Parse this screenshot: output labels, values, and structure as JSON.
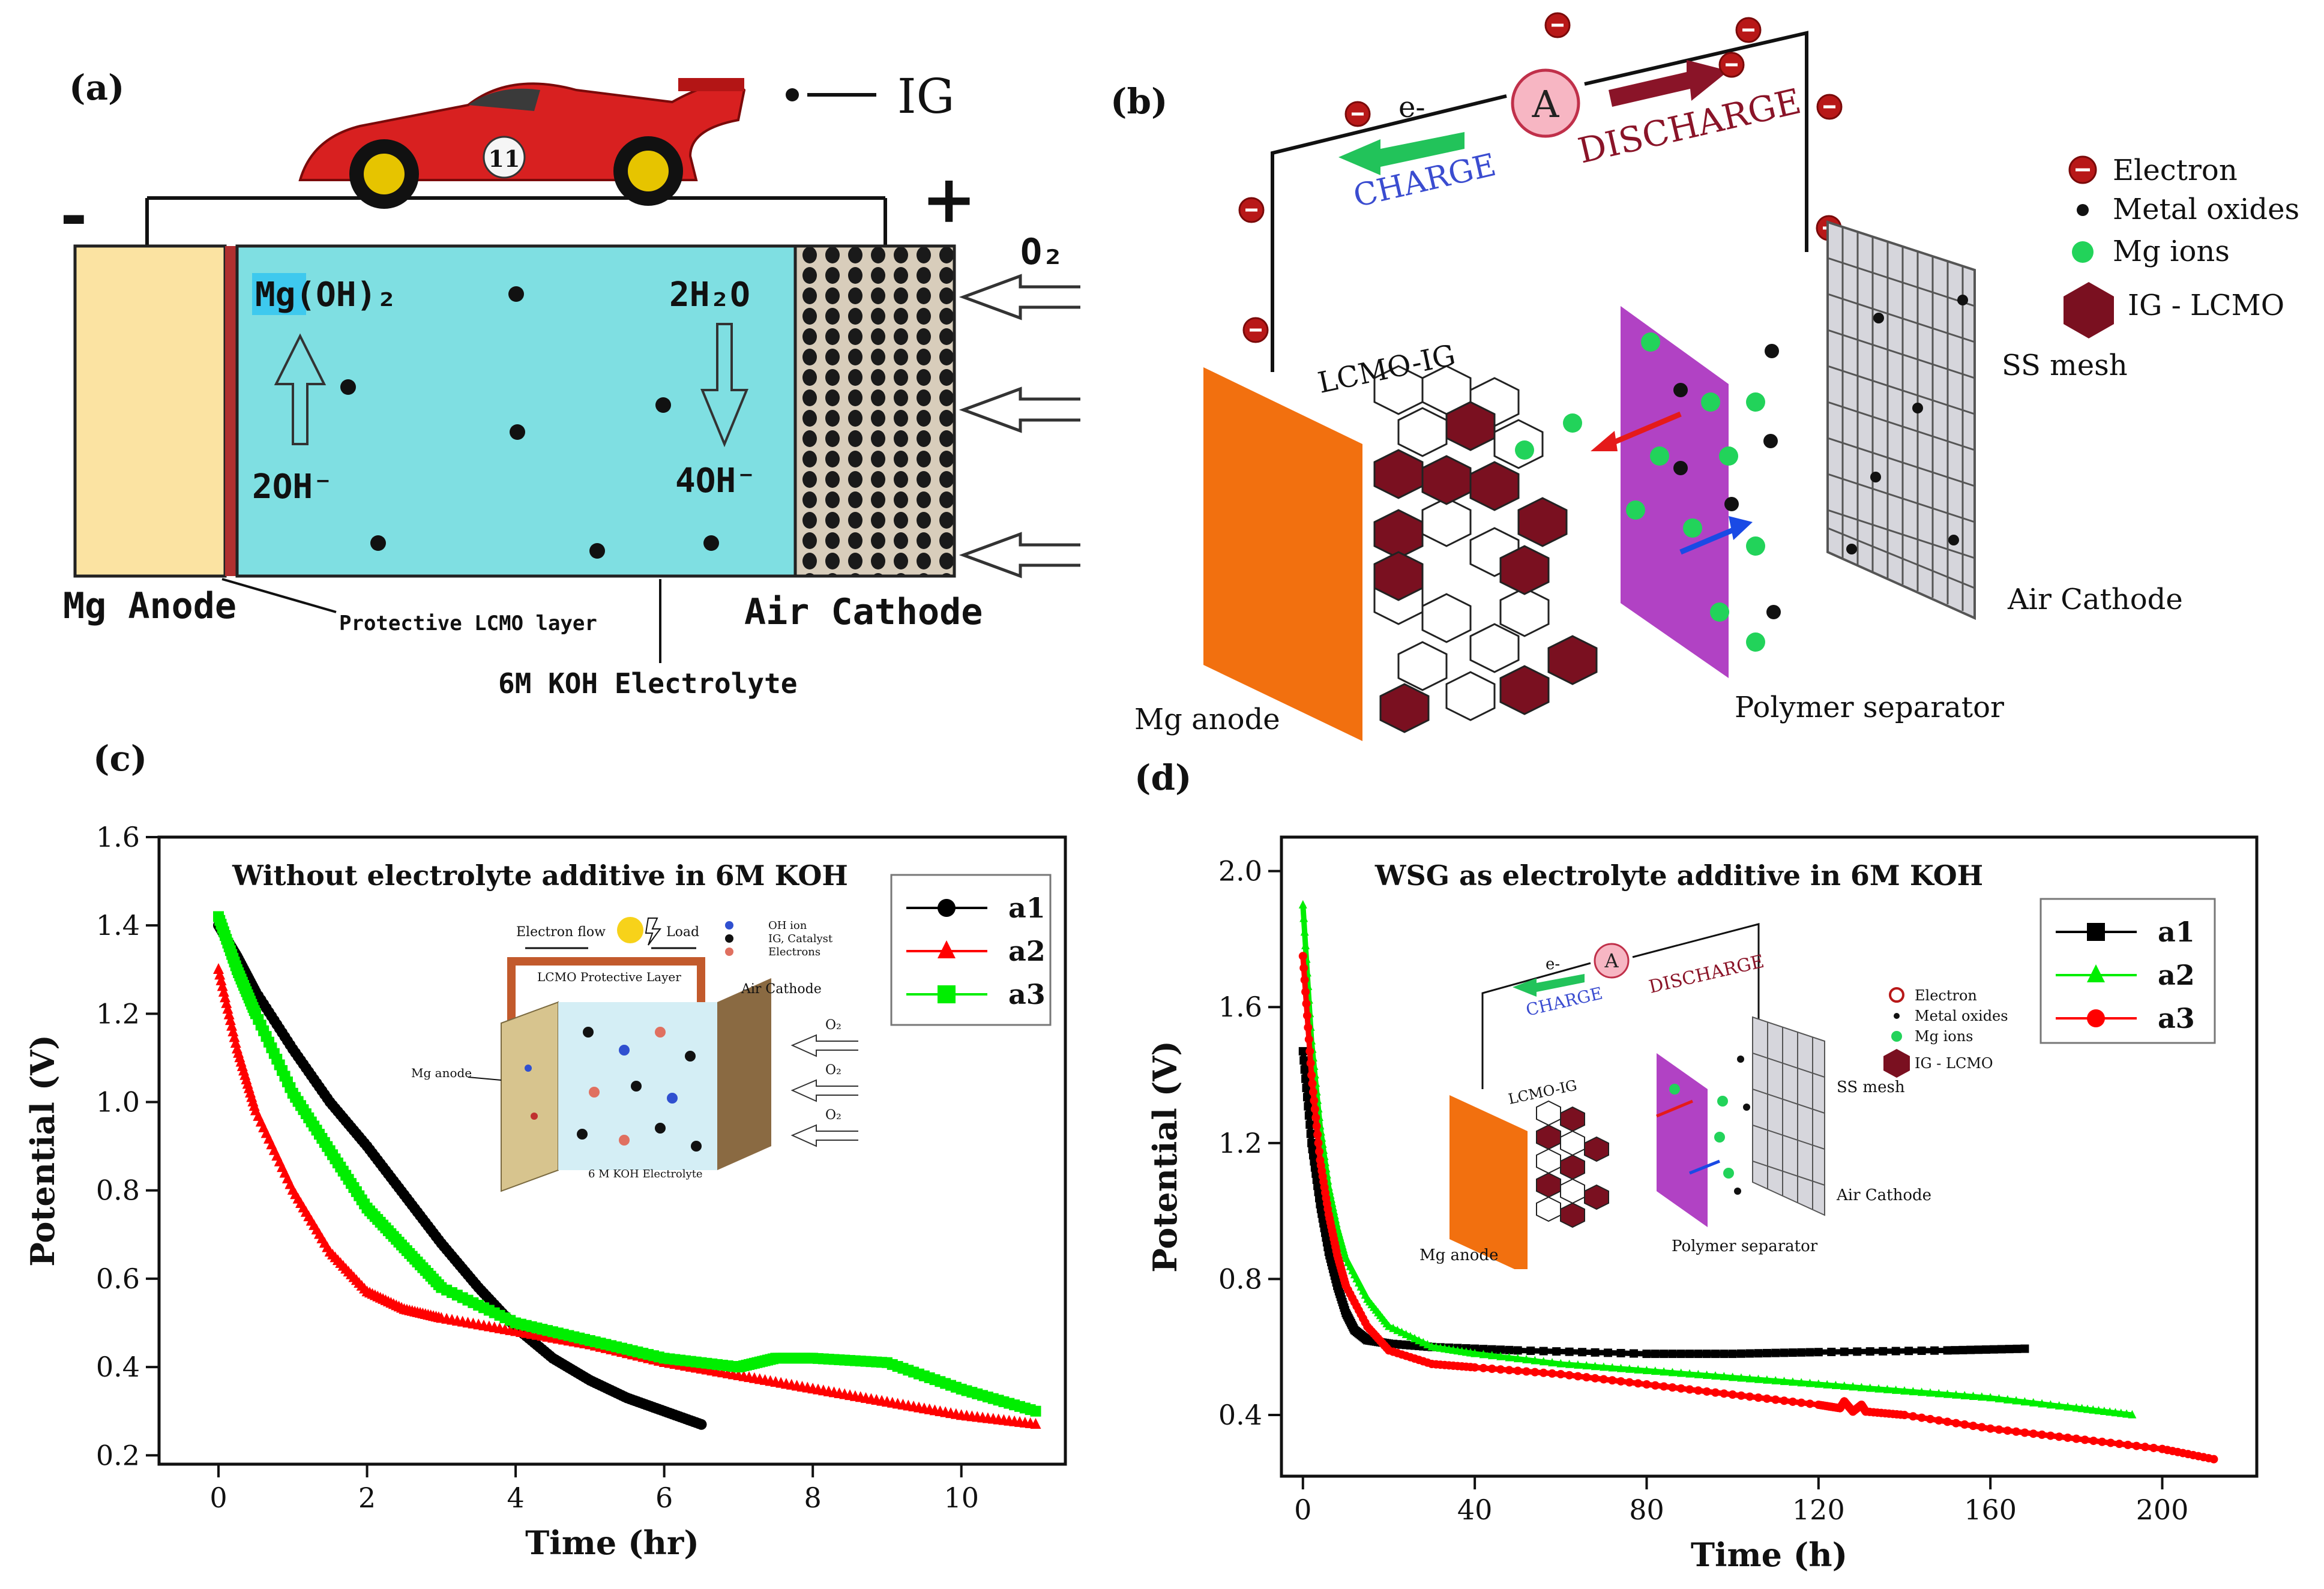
{
  "panel_labels": {
    "a": "(a)",
    "b": "(b)",
    "c": "(c)",
    "d": "(d)"
  },
  "panel_a": {
    "legend_ig": "IG",
    "minus": "-",
    "plus": "+",
    "o2": "O₂",
    "mg_oh2": "Mg(OH)₂",
    "h2o": "2H₂O",
    "oh_left": "2OH⁻",
    "oh_right": "4OH⁻",
    "anode": "Mg Anode",
    "cathode": "Air Cathode",
    "protective": "Protective LCMO layer",
    "electrolyte": "6M KOH Electrolyte",
    "car_number": "11"
  },
  "panel_b": {
    "e_minus": "e-",
    "ammeter": "A",
    "charge": "CHARGE",
    "discharge": "DISCHARGE",
    "legend": [
      "Electron",
      "Metal oxides",
      "Mg ions",
      "IG - LCMO"
    ],
    "lcmo_ig": "LCMO-IG",
    "ss_mesh": "SS mesh",
    "air_cathode": "Air Cathode",
    "mg_anode": "Mg anode",
    "separator": "Polymer separator"
  },
  "panel_c_inset": {
    "electron_flow": "Electron flow",
    "load": "Load",
    "lcmo_layer": "LCMO Protective Layer",
    "air_cathode": "Air Cathode",
    "mg_anode": "Mg anode",
    "electrolyte": "6 M KOH Electrolyte",
    "legend": [
      "OH ion",
      "IG, Catalyst",
      "Electrons"
    ],
    "o2": "O₂"
  },
  "chart_data": [
    {
      "type": "scatter",
      "title": "Without electrolyte additive in 6M KOH",
      "xlabel": "Time (hr)",
      "ylabel": "Potential (V)",
      "xlim": [
        -0.8,
        11.4
      ],
      "ylim": [
        0.18,
        1.6
      ],
      "xticks": [
        "0",
        "2",
        "4",
        "6",
        "8",
        "10"
      ],
      "xtick_values": [
        0,
        2,
        4,
        6,
        8,
        10
      ],
      "yticks": [
        "0.2",
        "0.4",
        "0.6",
        "0.8",
        "1.0",
        "1.2",
        "1.4",
        "1.6"
      ],
      "ytick_values": [
        0.2,
        0.4,
        0.6,
        0.8,
        1.0,
        1.2,
        1.4,
        1.6
      ],
      "legend_position": "top-right",
      "series": [
        {
          "name": "a1",
          "color": "#000000",
          "marker": "circle",
          "x": [
            0,
            0.25,
            0.5,
            1,
            1.5,
            2,
            2.5,
            3,
            3.5,
            4,
            4.5,
            5,
            5.5,
            6,
            6.5
          ],
          "y": [
            1.4,
            1.33,
            1.25,
            1.12,
            1.0,
            0.9,
            0.79,
            0.68,
            0.58,
            0.49,
            0.42,
            0.37,
            0.33,
            0.3,
            0.27
          ]
        },
        {
          "name": "a2",
          "color": "#ff0000",
          "marker": "triangle",
          "x": [
            0,
            0.25,
            0.5,
            1,
            1.5,
            2,
            2.5,
            3,
            4,
            5,
            6,
            7,
            8,
            9,
            10,
            11
          ],
          "y": [
            1.3,
            1.12,
            0.98,
            0.8,
            0.66,
            0.57,
            0.53,
            0.51,
            0.48,
            0.45,
            0.41,
            0.38,
            0.35,
            0.32,
            0.29,
            0.27
          ]
        },
        {
          "name": "a3",
          "color": "#00ee00",
          "marker": "square",
          "x": [
            0,
            0.25,
            0.5,
            1,
            1.5,
            2,
            2.5,
            3,
            4,
            5,
            6,
            7,
            7.5,
            8,
            9,
            10,
            11
          ],
          "y": [
            1.42,
            1.3,
            1.2,
            1.02,
            0.89,
            0.76,
            0.67,
            0.58,
            0.5,
            0.46,
            0.42,
            0.4,
            0.42,
            0.42,
            0.41,
            0.35,
            0.3
          ]
        }
      ]
    },
    {
      "type": "line",
      "title": "WSG as electrolyte additive in 6M KOH",
      "xlabel": "Time (h)",
      "ylabel": "Potential (V)",
      "xlim": [
        -5,
        222
      ],
      "ylim": [
        0.22,
        2.1
      ],
      "xticks": [
        "0",
        "40",
        "80",
        "120",
        "160",
        "200"
      ],
      "xtick_values": [
        0,
        40,
        80,
        120,
        160,
        200
      ],
      "yticks": [
        "0.4",
        "0.8",
        "1.2",
        "1.6",
        "2.0"
      ],
      "ytick_values": [
        0.4,
        0.8,
        1.2,
        1.6,
        2.0
      ],
      "legend_position": "top-right",
      "series": [
        {
          "name": "a1",
          "color": "#000000",
          "marker": "square",
          "x": [
            0,
            2,
            4,
            6,
            8,
            10,
            12,
            15,
            20,
            30,
            50,
            80,
            100,
            120,
            150,
            168
          ],
          "y": [
            1.47,
            1.2,
            1.02,
            0.88,
            0.78,
            0.7,
            0.65,
            0.62,
            0.61,
            0.6,
            0.59,
            0.58,
            0.58,
            0.585,
            0.59,
            0.595
          ]
        },
        {
          "name": "a2",
          "color": "#00ee00",
          "marker": "triangle",
          "x": [
            0,
            2,
            4,
            6,
            8,
            10,
            15,
            20,
            30,
            40,
            60,
            80,
            100,
            120,
            140,
            160,
            180,
            193
          ],
          "y": [
            1.9,
            1.5,
            1.25,
            1.07,
            0.95,
            0.86,
            0.74,
            0.66,
            0.6,
            0.58,
            0.55,
            0.53,
            0.51,
            0.49,
            0.47,
            0.45,
            0.42,
            0.4
          ]
        },
        {
          "name": "a3",
          "color": "#ff0000",
          "marker": "circle",
          "x": [
            0,
            2,
            4,
            6,
            8,
            10,
            15,
            20,
            30,
            40,
            60,
            80,
            100,
            120,
            125,
            126,
            128,
            130,
            131,
            140,
            160,
            180,
            200,
            212
          ],
          "y": [
            1.75,
            1.4,
            1.15,
            0.99,
            0.87,
            0.78,
            0.66,
            0.59,
            0.55,
            0.54,
            0.52,
            0.49,
            0.46,
            0.43,
            0.42,
            0.44,
            0.41,
            0.43,
            0.41,
            0.4,
            0.36,
            0.33,
            0.3,
            0.27
          ]
        }
      ]
    }
  ]
}
